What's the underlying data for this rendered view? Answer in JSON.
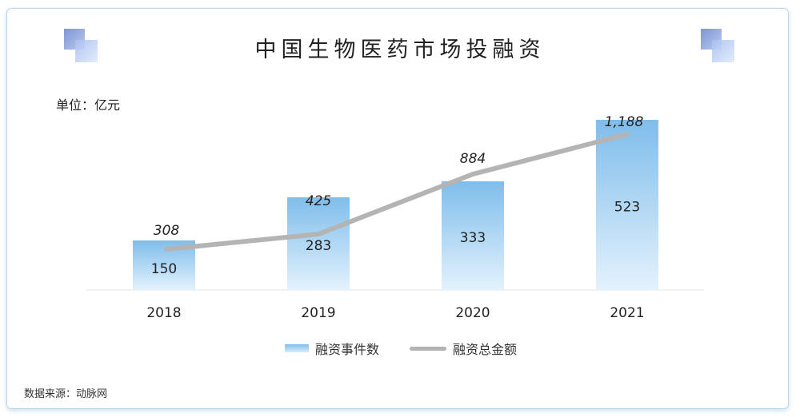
{
  "title": "中国生物医药市场投融资",
  "unit": "单位：亿元",
  "source": "数据来源：动脉网",
  "colors": {
    "bar_top": "#7fbdeb",
    "bar_bottom": "#dcefff",
    "line": "#b4b4b4",
    "card_border": "#bcd6ec"
  },
  "chart_data": {
    "type": "bar",
    "categories": [
      "2018",
      "2019",
      "2020",
      "2021"
    ],
    "series": [
      {
        "name": "融资事件数",
        "type": "bar",
        "values": [
          150,
          283,
          333,
          523
        ]
      },
      {
        "name": "融资总金额",
        "type": "line",
        "values": [
          308,
          425,
          884,
          1188
        ],
        "labels": [
          "308",
          "425",
          "884",
          "1,188"
        ]
      }
    ],
    "ylim": [
      0,
      1300
    ],
    "grid": false,
    "legend_position": "bottom"
  }
}
